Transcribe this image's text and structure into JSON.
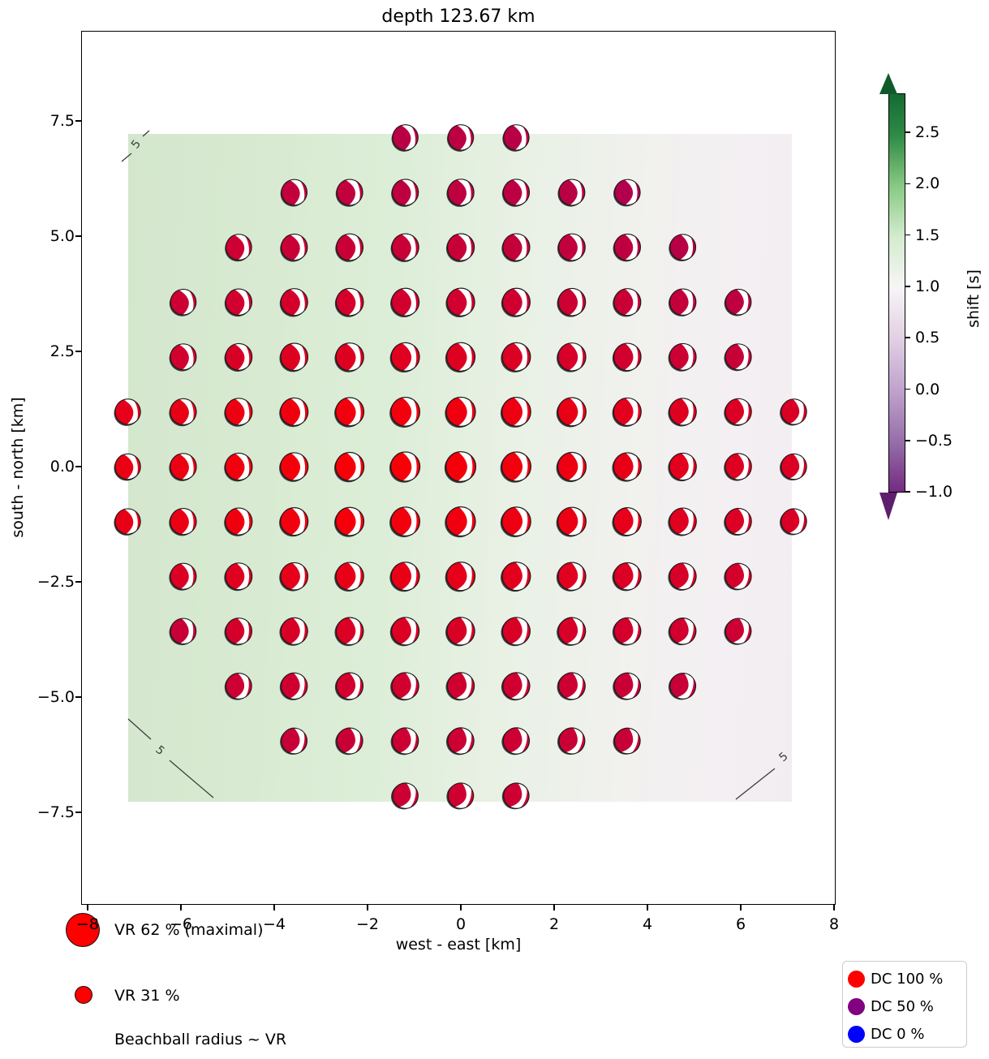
{
  "title": "depth 123.67 km",
  "axes": {
    "xlabel": "west - east [km]",
    "ylabel": "south - north [km]",
    "x_ticks": [
      "−8",
      "−6",
      "−4",
      "−2",
      "0",
      "2",
      "4",
      "6",
      "8"
    ],
    "x_tick_values": [
      -8,
      -6,
      -4,
      -2,
      0,
      2,
      4,
      6,
      8
    ],
    "y_ticks": [
      "7.5",
      "5.0",
      "2.5",
      "0.0",
      "−2.5",
      "−5.0",
      "−7.5"
    ],
    "y_tick_values": [
      7.5,
      5.0,
      2.5,
      0.0,
      -2.5,
      -5.0,
      -7.5
    ]
  },
  "colorbar": {
    "label": "shift [s]",
    "ticks": [
      "2.5",
      "2.0",
      "1.5",
      "1.0",
      "0.5",
      "0.0",
      "−0.5",
      "−1.0"
    ],
    "tick_values": [
      2.5,
      2.0,
      1.5,
      1.0,
      0.5,
      0.0,
      -0.5,
      -1.0
    ],
    "colormap": "PRGn (dark green high, white mid, dark purple low)",
    "gradient_stops": [
      [
        0,
        "#156b33"
      ],
      [
        0.103,
        "#2e8a45"
      ],
      [
        0.231,
        "#88c983"
      ],
      [
        0.359,
        "#d3ecce"
      ],
      [
        0.487,
        "#f7f5f6"
      ],
      [
        0.615,
        "#e2d0e4"
      ],
      [
        0.744,
        "#c0a3cd"
      ],
      [
        0.872,
        "#9770a9"
      ],
      [
        1,
        "#742b81"
      ]
    ],
    "arrow_top_color": "#0f5a2b",
    "arrow_bottom_color": "#5f1e6d"
  },
  "legend_vr": {
    "max_label": "VR 62 % (maximal)",
    "mid_label": "VR 31 %",
    "note": "Beachball radius ~ VR",
    "marker_color": "#ff0000"
  },
  "legend_dc": {
    "items": [
      {
        "label": "DC 100 %",
        "color": "#ff0000"
      },
      {
        "label": "DC 50 %",
        "color": "#800080"
      },
      {
        "label": "DC 0 %",
        "color": "#0000ff"
      }
    ]
  },
  "contours": [
    {
      "label": "5",
      "pos": "top-left"
    },
    {
      "label": "5",
      "pos": "bottom-left"
    },
    {
      "label": "5",
      "pos": "bottom-right"
    }
  ],
  "chart_data": {
    "type": "scatter",
    "subtype": "moment-tensor beachball grid over time-shift field",
    "title": "depth 123.67 km",
    "xlabel": "west - east [km]",
    "ylabel": "south - north [km]",
    "xlim": [
      -8.15,
      8.05
    ],
    "ylim": [
      -9.5,
      9.45
    ],
    "grid_spacing_km": 1.19,
    "grid_shape": "circular selection, radius ~7.3 km, 121 points",
    "background_field": "shift [s]: light green (~1.5) west side fading to pale purple-white (~0.8) east side",
    "contour_level_label": "5",
    "ball_color_rule": "rgb(255*dc, 0, 255*(1-dc)) ; dc=1 red, dc=0.5 purple, dc=0 blue",
    "ball_radius_rule": "r_px = 18.4 - 0.38*dist_km (radius ~ VR, max VR 62 %)",
    "balls_fields": [
      "east_km",
      "north_km",
      "dc_fraction"
    ],
    "balls": [
      [
        -1.19,
        7.14,
        0.73
      ],
      [
        0,
        7.14,
        0.74
      ],
      [
        1.19,
        7.14,
        0.72
      ],
      [
        -3.57,
        5.95,
        0.76
      ],
      [
        -2.38,
        5.95,
        0.76
      ],
      [
        -1.19,
        5.95,
        0.75
      ],
      [
        0,
        5.95,
        0.75
      ],
      [
        1.19,
        5.95,
        0.74
      ],
      [
        2.38,
        5.95,
        0.73
      ],
      [
        3.57,
        5.95,
        0.7
      ],
      [
        -4.76,
        4.76,
        0.8
      ],
      [
        -3.57,
        4.76,
        0.79
      ],
      [
        -2.38,
        4.76,
        0.79
      ],
      [
        -1.19,
        4.76,
        0.78
      ],
      [
        0,
        4.76,
        0.78
      ],
      [
        1.19,
        4.76,
        0.77
      ],
      [
        2.38,
        4.76,
        0.76
      ],
      [
        3.57,
        4.76,
        0.75
      ],
      [
        4.76,
        4.76,
        0.72
      ],
      [
        -5.95,
        3.57,
        0.8
      ],
      [
        -4.76,
        3.57,
        0.82
      ],
      [
        -3.57,
        3.57,
        0.83
      ],
      [
        -2.38,
        3.57,
        0.83
      ],
      [
        -1.19,
        3.57,
        0.82
      ],
      [
        0,
        3.57,
        0.82
      ],
      [
        1.19,
        3.57,
        0.81
      ],
      [
        2.38,
        3.57,
        0.8
      ],
      [
        3.57,
        3.57,
        0.79
      ],
      [
        4.76,
        3.57,
        0.77
      ],
      [
        5.95,
        3.57,
        0.75
      ],
      [
        -5.95,
        2.38,
        0.82
      ],
      [
        -4.76,
        2.38,
        0.85
      ],
      [
        -3.57,
        2.38,
        0.87
      ],
      [
        -2.38,
        2.38,
        0.87
      ],
      [
        -1.19,
        2.38,
        0.88
      ],
      [
        0,
        2.38,
        0.87
      ],
      [
        1.19,
        2.38,
        0.86
      ],
      [
        2.38,
        2.38,
        0.84
      ],
      [
        3.57,
        2.38,
        0.82
      ],
      [
        4.76,
        2.38,
        0.8
      ],
      [
        5.95,
        2.38,
        0.78
      ],
      [
        -7.14,
        1.19,
        0.9
      ],
      [
        -5.95,
        1.19,
        0.91
      ],
      [
        -4.76,
        1.19,
        0.93
      ],
      [
        -3.57,
        1.19,
        0.94
      ],
      [
        -2.38,
        1.19,
        0.95
      ],
      [
        -1.19,
        1.19,
        0.95
      ],
      [
        0,
        1.19,
        0.94
      ],
      [
        1.19,
        1.19,
        0.93
      ],
      [
        2.38,
        1.19,
        0.91
      ],
      [
        3.57,
        1.19,
        0.89
      ],
      [
        4.76,
        1.19,
        0.87
      ],
      [
        5.95,
        1.19,
        0.86
      ],
      [
        7.14,
        1.19,
        0.85
      ],
      [
        -7.14,
        0,
        0.92
      ],
      [
        -5.95,
        0,
        0.93
      ],
      [
        -4.76,
        0,
        0.95
      ],
      [
        -3.57,
        0,
        0.96
      ],
      [
        -2.38,
        0,
        0.97
      ],
      [
        -1.19,
        0,
        0.97
      ],
      [
        0,
        0,
        0.96
      ],
      [
        1.19,
        0,
        0.95
      ],
      [
        2.38,
        0,
        0.93
      ],
      [
        3.57,
        0,
        0.91
      ],
      [
        4.76,
        0,
        0.89
      ],
      [
        5.95,
        0,
        0.87
      ],
      [
        7.14,
        0,
        0.86
      ],
      [
        -7.14,
        -1.19,
        0.91
      ],
      [
        -5.95,
        -1.19,
        0.92
      ],
      [
        -4.76,
        -1.19,
        0.94
      ],
      [
        -3.57,
        -1.19,
        0.95
      ],
      [
        -2.38,
        -1.19,
        0.96
      ],
      [
        -1.19,
        -1.19,
        0.95
      ],
      [
        0,
        -1.19,
        0.94
      ],
      [
        1.19,
        -1.19,
        0.93
      ],
      [
        2.38,
        -1.19,
        0.92
      ],
      [
        3.57,
        -1.19,
        0.9
      ],
      [
        4.76,
        -1.19,
        0.88
      ],
      [
        5.95,
        -1.19,
        0.86
      ],
      [
        7.14,
        -1.19,
        0.85
      ],
      [
        -5.95,
        -2.38,
        0.86
      ],
      [
        -4.76,
        -2.38,
        0.88
      ],
      [
        -3.57,
        -2.38,
        0.9
      ],
      [
        -2.38,
        -2.38,
        0.91
      ],
      [
        -1.19,
        -2.38,
        0.91
      ],
      [
        0,
        -2.38,
        0.9
      ],
      [
        1.19,
        -2.38,
        0.89
      ],
      [
        2.38,
        -2.38,
        0.88
      ],
      [
        3.57,
        -2.38,
        0.86
      ],
      [
        4.76,
        -2.38,
        0.84
      ],
      [
        5.95,
        -2.38,
        0.83
      ],
      [
        -5.95,
        -3.57,
        0.78
      ],
      [
        -4.76,
        -3.57,
        0.83
      ],
      [
        -3.57,
        -3.57,
        0.85
      ],
      [
        -2.38,
        -3.57,
        0.86
      ],
      [
        -1.19,
        -3.57,
        0.86
      ],
      [
        0,
        -3.57,
        0.85
      ],
      [
        1.19,
        -3.57,
        0.85
      ],
      [
        2.38,
        -3.57,
        0.84
      ],
      [
        3.57,
        -3.57,
        0.83
      ],
      [
        4.76,
        -3.57,
        0.82
      ],
      [
        5.95,
        -3.57,
        0.8
      ],
      [
        -4.76,
        -4.76,
        0.8
      ],
      [
        -3.57,
        -4.76,
        0.81
      ],
      [
        -2.38,
        -4.76,
        0.82
      ],
      [
        -1.19,
        -4.76,
        0.82
      ],
      [
        0,
        -4.76,
        0.81
      ],
      [
        1.19,
        -4.76,
        0.81
      ],
      [
        2.38,
        -4.76,
        0.8
      ],
      [
        3.57,
        -4.76,
        0.79
      ],
      [
        4.76,
        -4.76,
        0.78
      ],
      [
        -3.57,
        -5.95,
        0.78
      ],
      [
        -2.38,
        -5.95,
        0.79
      ],
      [
        -1.19,
        -5.95,
        0.8
      ],
      [
        0,
        -5.95,
        0.8
      ],
      [
        1.19,
        -5.95,
        0.8
      ],
      [
        2.38,
        -5.95,
        0.79
      ],
      [
        3.57,
        -5.95,
        0.78
      ],
      [
        -1.19,
        -7.14,
        0.8
      ],
      [
        0,
        -7.14,
        0.81
      ],
      [
        1.19,
        -7.14,
        0.8
      ]
    ]
  }
}
